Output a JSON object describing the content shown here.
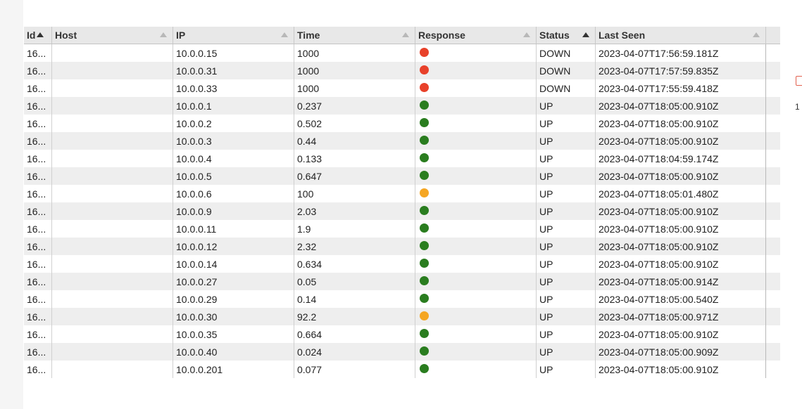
{
  "table": {
    "columns": [
      {
        "key": "id",
        "label": "Id",
        "sorted": "asc"
      },
      {
        "key": "host",
        "label": "Host"
      },
      {
        "key": "ip",
        "label": "IP"
      },
      {
        "key": "time",
        "label": "Time"
      },
      {
        "key": "response",
        "label": "Response"
      },
      {
        "key": "status",
        "label": "Status",
        "sorted": "asc"
      },
      {
        "key": "last_seen",
        "label": "Last Seen"
      }
    ],
    "status_colors": {
      "down": "#e8412a",
      "up": "#2a7d1f",
      "slow": "#f5a623"
    },
    "rows": [
      {
        "id": "16...",
        "host": "",
        "ip": "10.0.0.15",
        "time": "1000",
        "response": "down",
        "status": "DOWN",
        "last_seen": "2023-04-07T17:56:59.181Z"
      },
      {
        "id": "16...",
        "host": "",
        "ip": "10.0.0.31",
        "time": "1000",
        "response": "down",
        "status": "DOWN",
        "last_seen": "2023-04-07T17:57:59.835Z"
      },
      {
        "id": "16...",
        "host": "",
        "ip": "10.0.0.33",
        "time": "1000",
        "response": "down",
        "status": "DOWN",
        "last_seen": "2023-04-07T17:55:59.418Z"
      },
      {
        "id": "16...",
        "host": "",
        "ip": "10.0.0.1",
        "time": "0.237",
        "response": "up",
        "status": "UP",
        "last_seen": "2023-04-07T18:05:00.910Z"
      },
      {
        "id": "16...",
        "host": "",
        "ip": "10.0.0.2",
        "time": "0.502",
        "response": "up",
        "status": "UP",
        "last_seen": "2023-04-07T18:05:00.910Z"
      },
      {
        "id": "16...",
        "host": "",
        "ip": "10.0.0.3",
        "time": "0.44",
        "response": "up",
        "status": "UP",
        "last_seen": "2023-04-07T18:05:00.910Z"
      },
      {
        "id": "16...",
        "host": "",
        "ip": "10.0.0.4",
        "time": "0.133",
        "response": "up",
        "status": "UP",
        "last_seen": "2023-04-07T18:04:59.174Z"
      },
      {
        "id": "16...",
        "host": "",
        "ip": "10.0.0.5",
        "time": "0.647",
        "response": "up",
        "status": "UP",
        "last_seen": "2023-04-07T18:05:00.910Z"
      },
      {
        "id": "16...",
        "host": "",
        "ip": "10.0.0.6",
        "time": "100",
        "response": "slow",
        "status": "UP",
        "last_seen": "2023-04-07T18:05:01.480Z"
      },
      {
        "id": "16...",
        "host": "",
        "ip": "10.0.0.9",
        "time": "2.03",
        "response": "up",
        "status": "UP",
        "last_seen": "2023-04-07T18:05:00.910Z"
      },
      {
        "id": "16...",
        "host": "",
        "ip": "10.0.0.11",
        "time": "1.9",
        "response": "up",
        "status": "UP",
        "last_seen": "2023-04-07T18:05:00.910Z"
      },
      {
        "id": "16...",
        "host": "",
        "ip": "10.0.0.12",
        "time": "2.32",
        "response": "up",
        "status": "UP",
        "last_seen": "2023-04-07T18:05:00.910Z"
      },
      {
        "id": "16...",
        "host": "",
        "ip": "10.0.0.14",
        "time": "0.634",
        "response": "up",
        "status": "UP",
        "last_seen": "2023-04-07T18:05:00.910Z"
      },
      {
        "id": "16...",
        "host": "",
        "ip": "10.0.0.27",
        "time": "0.05",
        "response": "up",
        "status": "UP",
        "last_seen": "2023-04-07T18:05:00.914Z"
      },
      {
        "id": "16...",
        "host": "",
        "ip": "10.0.0.29",
        "time": "0.14",
        "response": "up",
        "status": "UP",
        "last_seen": "2023-04-07T18:05:00.540Z"
      },
      {
        "id": "16...",
        "host": "",
        "ip": "10.0.0.30",
        "time": "92.2",
        "response": "slow",
        "status": "UP",
        "last_seen": "2023-04-07T18:05:00.971Z"
      },
      {
        "id": "16...",
        "host": "",
        "ip": "10.0.0.35",
        "time": "0.664",
        "response": "up",
        "status": "UP",
        "last_seen": "2023-04-07T18:05:00.910Z"
      },
      {
        "id": "16...",
        "host": "",
        "ip": "10.0.0.40",
        "time": "0.024",
        "response": "up",
        "status": "UP",
        "last_seen": "2023-04-07T18:05:00.909Z"
      },
      {
        "id": "16...",
        "host": "",
        "ip": "10.0.0.201",
        "time": "0.077",
        "response": "up",
        "status": "UP",
        "last_seen": "2023-04-07T18:05:00.910Z"
      }
    ]
  },
  "edge": {
    "text": "1"
  }
}
